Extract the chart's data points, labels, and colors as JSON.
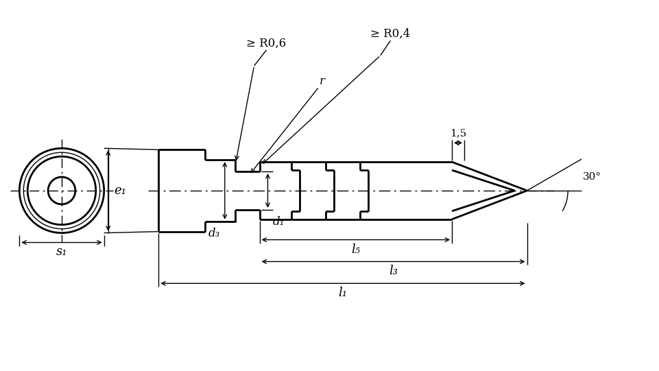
{
  "bg_color": "#ffffff",
  "line_color": "#000000",
  "lw_thick": 2.0,
  "lw_thin": 1.0,
  "figsize": [
    9.61,
    5.41
  ],
  "dpi": 100,
  "labels": {
    "e1": "e₁",
    "s1": "s₁",
    "d3": "d₃",
    "d1": "d₁",
    "l5": "l₅",
    "l3": "l₃",
    "l1": "l₁",
    "r": "r",
    "R06": "≥ R0,6",
    "R04": "≥ R0,4",
    "dim15": "1,5",
    "ang30": "30°"
  }
}
